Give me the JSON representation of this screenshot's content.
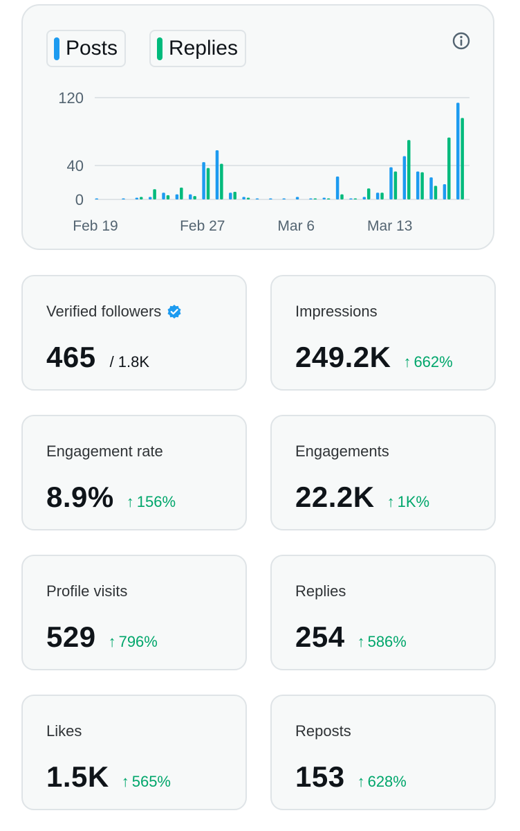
{
  "colors": {
    "posts": "#1d9bf0",
    "replies": "#00ba7c",
    "grid": "#dfe4e7",
    "axis_text": "#536471",
    "positive": "#00a66b",
    "verified": "#1d9bf0"
  },
  "legend": {
    "posts_label": "Posts",
    "replies_label": "Replies"
  },
  "icons": {
    "info": "info-icon",
    "verified": "verified-badge-icon",
    "up_arrow": "arrow-up-icon"
  },
  "chart_data": {
    "type": "bar",
    "ylim": [
      0,
      120
    ],
    "yticks": [
      0,
      40,
      120
    ],
    "ytick_labels": [
      "0",
      "40",
      "120"
    ],
    "xtick_labels": [
      "Feb 19",
      "Feb 27",
      "Mar 6",
      "Mar 13"
    ],
    "xtick_days": [
      0,
      8,
      15,
      22
    ],
    "days": [
      0,
      1,
      2,
      3,
      4,
      5,
      6,
      7,
      8,
      9,
      10,
      11,
      12,
      13,
      14,
      15,
      16,
      17,
      18,
      19,
      20,
      21,
      22,
      23,
      24,
      25,
      26,
      27
    ],
    "series": [
      {
        "name": "Posts",
        "values": [
          1,
          0,
          1,
          2,
          3,
          8,
          6,
          6,
          44,
          58,
          8,
          3,
          1,
          1,
          1,
          3,
          1,
          2,
          27,
          1,
          3,
          8,
          38,
          51,
          33,
          26,
          18,
          114
        ]
      },
      {
        "name": "Replies",
        "values": [
          0,
          0,
          0,
          3,
          12,
          5,
          14,
          4,
          37,
          42,
          9,
          2,
          0,
          0,
          0,
          0,
          1,
          1,
          6,
          1,
          13,
          8,
          33,
          70,
          32,
          16,
          73,
          96
        ]
      }
    ]
  },
  "stats": [
    {
      "label": "Verified followers",
      "value": "465",
      "sub": "/ 1.8K"
    },
    {
      "label": "Impressions",
      "value": "249.2K",
      "change": "662%"
    },
    {
      "label": "Engagement rate",
      "value": "8.9%",
      "change": "156%"
    },
    {
      "label": "Engagements",
      "value": "22.2K",
      "change": "1K%"
    },
    {
      "label": "Profile visits",
      "value": "529",
      "change": "796%"
    },
    {
      "label": "Replies",
      "value": "254",
      "change": "586%"
    },
    {
      "label": "Likes",
      "value": "1.5K",
      "change": "565%"
    },
    {
      "label": "Reposts",
      "value": "153",
      "change": "628%"
    }
  ]
}
